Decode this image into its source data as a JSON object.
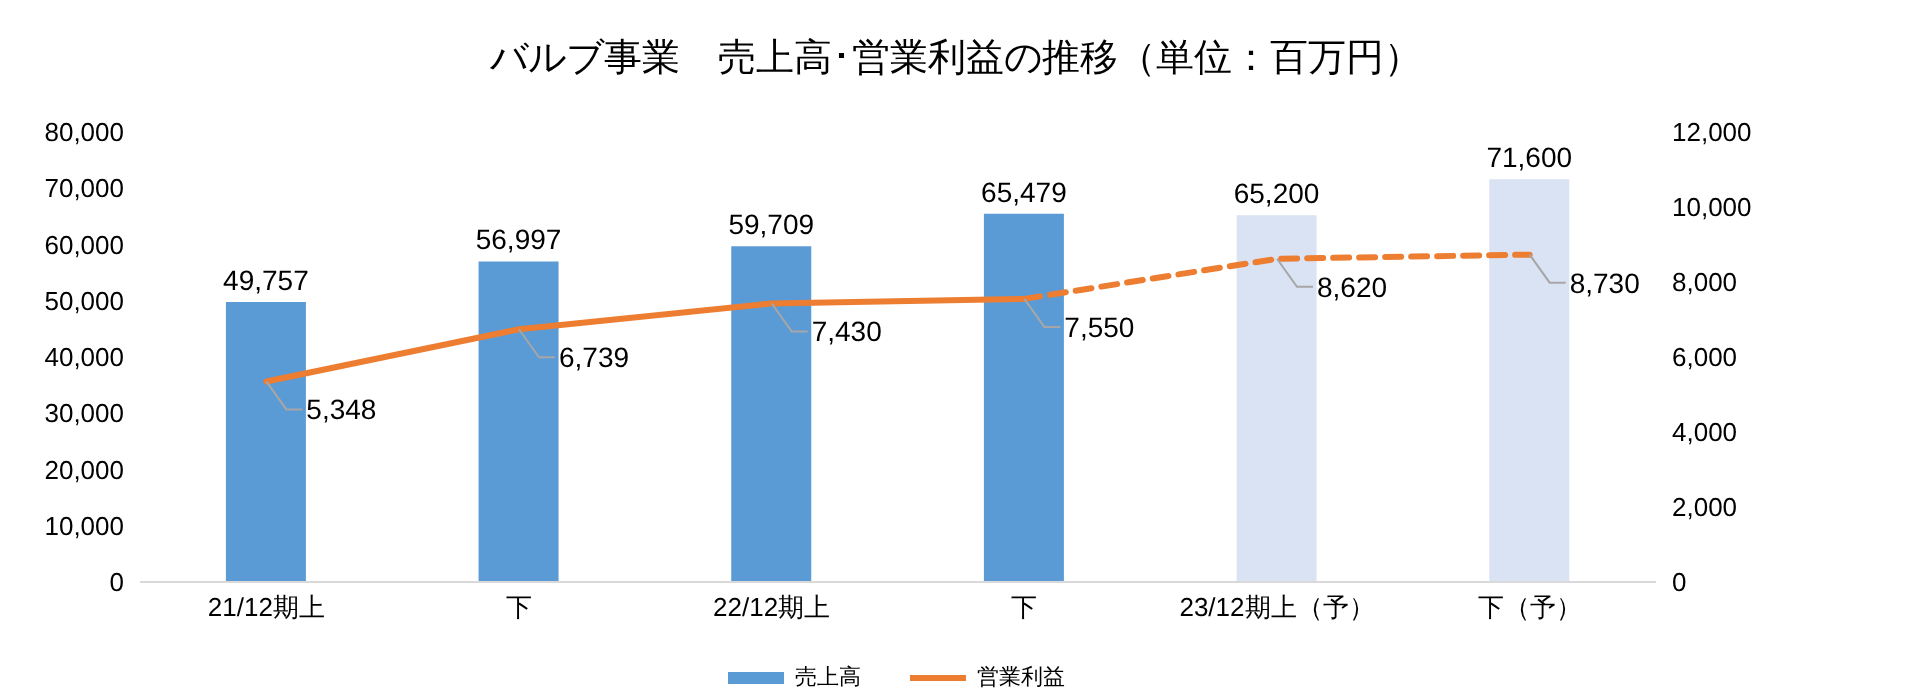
{
  "chart_data": {
    "type": "bar",
    "title": "バルブ事業　売上高･営業利益の推移（単位：百万円）",
    "categories": [
      "21/12期上",
      "下",
      "22/12期上",
      "下",
      "23/12期上（予）",
      "下（予）"
    ],
    "series": [
      {
        "name": "売上高",
        "color": "#5b9bd5",
        "colors": [
          "#5b9bd5",
          "#5b9bd5",
          "#5b9bd5",
          "#5b9bd5",
          "#dae3f3",
          "#dae3f3"
        ],
        "values": [
          49757,
          56997,
          59709,
          65479,
          65200,
          71600
        ],
        "value_labels": [
          "49,757",
          "56,997",
          "59,709",
          "65,479",
          "65,200",
          "71,600"
        ]
      },
      {
        "name": "営業利益",
        "type": "line",
        "axis": "y2",
        "color": "#ed7d31",
        "line_style": "solid",
        "values": [
          5348,
          6739,
          7430,
          7550,
          null,
          null
        ],
        "value_labels": [
          "5,348",
          "6,739",
          "7,430",
          "7,550",
          null,
          null
        ]
      },
      {
        "type": "line",
        "axis": "y2",
        "color": "#ed7d31",
        "line_style": "dashed",
        "values": [
          null,
          null,
          null,
          7550,
          8620,
          8730
        ],
        "value_labels": [
          null,
          null,
          null,
          null,
          "8,620",
          "8,730"
        ]
      }
    ],
    "ylim": [
      0,
      80000
    ],
    "yticks": [
      0,
      {
        "value": 10000,
        "label": "10,000"
      },
      {
        "value": 20000,
        "label": "20,000"
      },
      {
        "value": 30000,
        "label": "30,000"
      },
      {
        "value": 40000,
        "label": "40,000"
      },
      {
        "value": 50000,
        "label": "50,000"
      },
      {
        "value": 60000,
        "label": "60,000"
      },
      {
        "value": 70000,
        "label": "70,000"
      },
      {
        "value": 80000,
        "label": "80,000"
      }
    ],
    "y2lim": [
      0,
      12000
    ],
    "y2ticks": [
      0,
      {
        "value": 2000,
        "label": "2,000"
      },
      {
        "value": 4000,
        "label": "4,000"
      },
      {
        "value": 6000,
        "label": "6,000"
      },
      {
        "value": 8000,
        "label": "8,000"
      },
      {
        "value": 10000,
        "label": "10,000"
      },
      {
        "value": 12000,
        "label": "12,000"
      }
    ],
    "marker": "none",
    "legend": "bottom"
  }
}
